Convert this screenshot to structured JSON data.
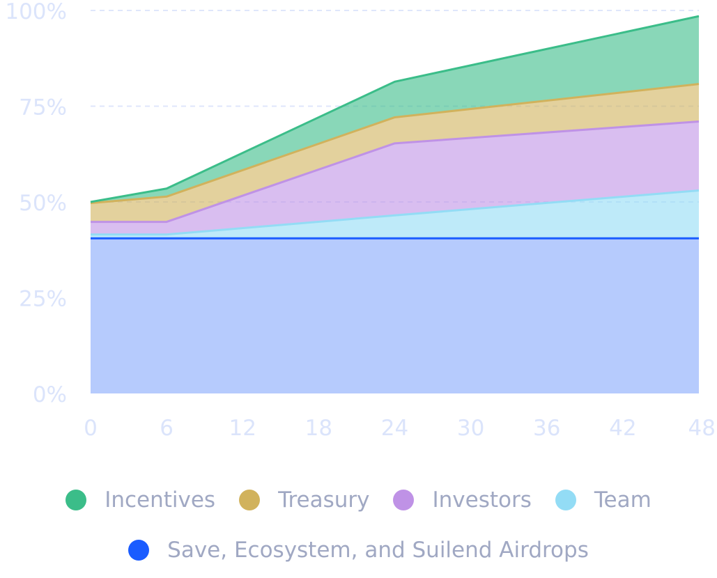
{
  "chart_data": {
    "type": "area",
    "stacked": true,
    "x": [
      0,
      6,
      24,
      48
    ],
    "xticks": [
      "0",
      "6",
      "12",
      "18",
      "24",
      "30",
      "36",
      "42",
      "48"
    ],
    "yticks": [
      "0%",
      "25%",
      "50%",
      "75%",
      "100%"
    ],
    "ylim": [
      0,
      100
    ],
    "xlim": [
      0,
      48
    ],
    "grid": "horizontal-dashed",
    "legend_position": "bottom",
    "series": [
      {
        "name": "Save, Ecosystem, and Suilend Airdrops",
        "color": "#1a5cff",
        "values": [
          40.5,
          40.5,
          40.5,
          40.5
        ]
      },
      {
        "name": "Team",
        "color": "#93dcf5",
        "values": [
          1.0,
          1.0,
          6.0,
          12.5
        ]
      },
      {
        "name": "Investors",
        "color": "#bf92e6",
        "values": [
          3.3,
          3.3,
          18.8,
          18.0
        ]
      },
      {
        "name": "Treasury",
        "color": "#d1b25c",
        "values": [
          4.9,
          6.6,
          6.8,
          9.8
        ]
      },
      {
        "name": "Incentives",
        "color": "#3bbd89",
        "values": [
          0.3,
          2.1,
          9.3,
          17.7
        ]
      }
    ]
  },
  "legend": {
    "row1": [
      {
        "label": "Incentives",
        "color": "#3bbd89"
      },
      {
        "label": "Treasury",
        "color": "#d1b25c"
      },
      {
        "label": "Investors",
        "color": "#bf92e6"
      },
      {
        "label": "Team",
        "color": "#93dcf5"
      }
    ],
    "row2": [
      {
        "label": "Save, Ecosystem, and Suilend Airdrops",
        "color": "#1a5cff"
      }
    ]
  }
}
